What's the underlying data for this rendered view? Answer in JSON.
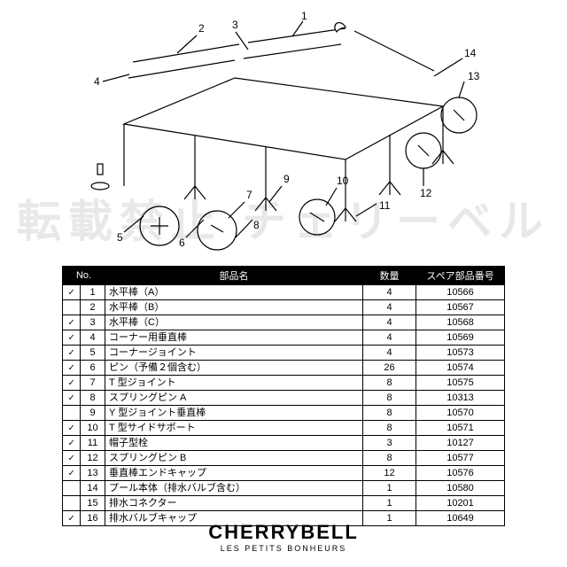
{
  "watermark": "転載禁止 チェリーベル",
  "brand": {
    "main": "CHERRYBELL",
    "sub": "LES PETITS BONHEURS"
  },
  "table": {
    "headers": {
      "no": "No.",
      "name": "部品名",
      "qty": "数量",
      "spare": "スペア部品番号"
    },
    "rows": [
      {
        "check": "✓",
        "no": "1",
        "name": "水平棒（A）",
        "qty": "4",
        "spare": "10566"
      },
      {
        "check": "",
        "no": "2",
        "name": "水平棒（B）",
        "qty": "4",
        "spare": "10567"
      },
      {
        "check": "✓",
        "no": "3",
        "name": "水平棒（C）",
        "qty": "4",
        "spare": "10568"
      },
      {
        "check": "✓",
        "no": "4",
        "name": "コーナー用垂直棒",
        "qty": "4",
        "spare": "10569"
      },
      {
        "check": "✓",
        "no": "5",
        "name": "コーナージョイント",
        "qty": "4",
        "spare": "10573"
      },
      {
        "check": "✓",
        "no": "6",
        "name": "ピン（予備２個含む）",
        "qty": "26",
        "spare": "10574"
      },
      {
        "check": "✓",
        "no": "7",
        "name": "T 型ジョイント",
        "qty": "8",
        "spare": "10575"
      },
      {
        "check": "✓",
        "no": "8",
        "name": "スプリングピン A",
        "qty": "8",
        "spare": "10313"
      },
      {
        "check": "",
        "no": "9",
        "name": "Y 型ジョイント垂直棒",
        "qty": "8",
        "spare": "10570"
      },
      {
        "check": "✓",
        "no": "10",
        "name": "T 型サイドサポート",
        "qty": "8",
        "spare": "10571"
      },
      {
        "check": "✓",
        "no": "11",
        "name": "帽子型栓",
        "qty": "3",
        "spare": "10127"
      },
      {
        "check": "✓",
        "no": "12",
        "name": "スプリングピン B",
        "qty": "8",
        "spare": "10577"
      },
      {
        "check": "✓",
        "no": "13",
        "name": "垂直棒エンドキャップ",
        "qty": "12",
        "spare": "10576"
      },
      {
        "check": "",
        "no": "14",
        "name": "プール本体（排水バルブ含む）",
        "qty": "1",
        "spare": "10580"
      },
      {
        "check": "",
        "no": "15",
        "name": "排水コネクター",
        "qty": "1",
        "spare": "10201"
      },
      {
        "check": "✓",
        "no": "16",
        "name": "排水バルブキャップ",
        "qty": "1",
        "spare": "10649"
      }
    ]
  },
  "diagram": {
    "callouts": [
      "1",
      "2",
      "3",
      "4",
      "5",
      "6",
      "7",
      "8",
      "9",
      "10",
      "11",
      "12",
      "13",
      "14"
    ],
    "stroke": "#000000",
    "circle_r": 22
  }
}
